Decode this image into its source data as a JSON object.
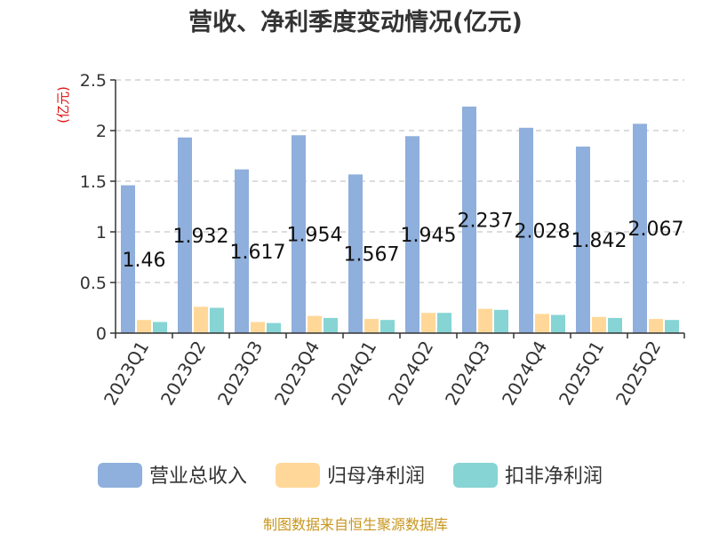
{
  "chart_data": {
    "type": "bar",
    "title": "营收、净利季度变动情况(亿元)",
    "unit_label": "(亿元)",
    "categories": [
      "2023Q1",
      "2023Q2",
      "2023Q3",
      "2023Q4",
      "2024Q1",
      "2024Q2",
      "2024Q3",
      "2024Q4",
      "2025Q1",
      "2025Q2"
    ],
    "series": [
      {
        "name": "营业总收入",
        "color": "#8fafdc",
        "values": [
          1.46,
          1.932,
          1.617,
          1.954,
          1.567,
          1.945,
          2.237,
          2.028,
          1.842,
          2.067
        ],
        "labels": [
          "1.46",
          "1.932",
          "1.617",
          "1.954",
          "1.567",
          "1.945",
          "2.237",
          "2.028",
          "1.842",
          "2.067"
        ]
      },
      {
        "name": "归母净利润",
        "color": "#ffd899",
        "values": [
          0.13,
          0.26,
          0.11,
          0.17,
          0.14,
          0.2,
          0.24,
          0.19,
          0.16,
          0.14
        ]
      },
      {
        "name": "扣非净利润",
        "color": "#87d4d4",
        "values": [
          0.11,
          0.25,
          0.1,
          0.15,
          0.13,
          0.2,
          0.23,
          0.18,
          0.15,
          0.13
        ]
      }
    ],
    "ylim": [
      0,
      2.5
    ],
    "yticks": [
      "0",
      "0.5",
      "1",
      "1.5",
      "2",
      "2.5"
    ],
    "grid": true,
    "legend": "bottom",
    "source": "制图数据来自恒生聚源数据库"
  }
}
